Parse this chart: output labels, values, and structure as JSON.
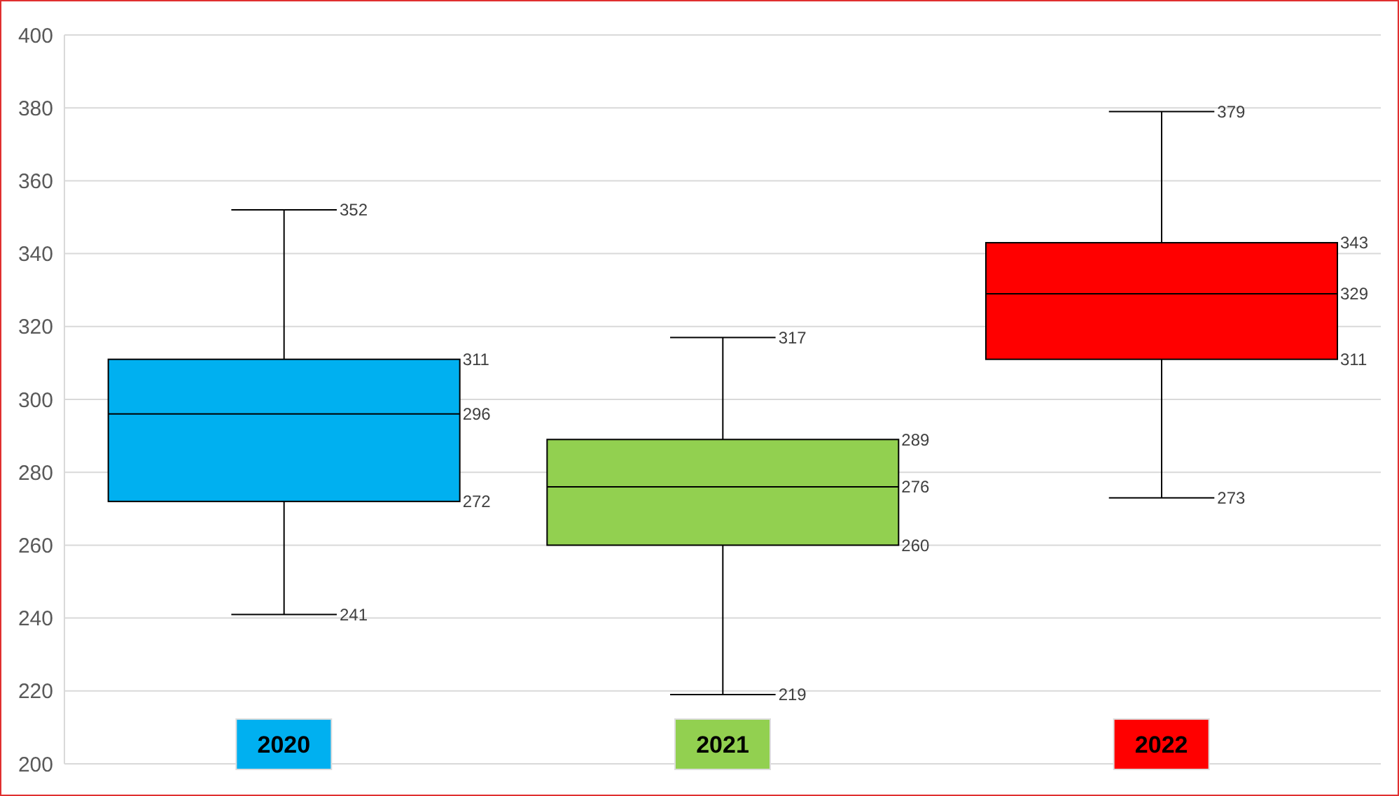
{
  "chart_data": {
    "type": "box",
    "categories": [
      "2020",
      "2021",
      "2022"
    ],
    "colors": [
      "#00b0f0",
      "#92d050",
      "#ff0000"
    ],
    "boxes": [
      {
        "low": 241,
        "q1": 272,
        "median": 296,
        "q3": 311,
        "high": 352
      },
      {
        "low": 219,
        "q1": 260,
        "median": 276,
        "q3": 289,
        "high": 317
      },
      {
        "low": 273,
        "q1": 311,
        "median": 329,
        "q3": 343,
        "high": 379
      }
    ],
    "ylim": [
      200,
      400
    ],
    "yticks": [
      200,
      220,
      240,
      260,
      280,
      300,
      320,
      340,
      360,
      380,
      400
    ],
    "grid": "y",
    "annotations": [
      "352",
      "311",
      "296",
      "272",
      "241",
      "317",
      "289",
      "276",
      "260",
      "219",
      "379",
      "343",
      "329",
      "311",
      "273"
    ]
  }
}
